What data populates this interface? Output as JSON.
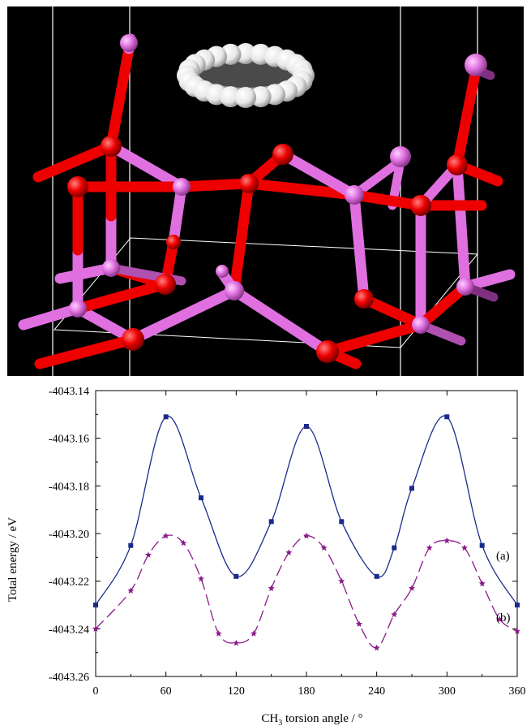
{
  "figure": {
    "top_panel": "molecular-structure-rendering",
    "atom_colors": {
      "oxygen": "#ee0000",
      "aluminium": "#e070e0",
      "carbon": "#555555",
      "hydrogen": "#f0f0f0"
    }
  },
  "chart_data": {
    "type": "line",
    "xlabel_main": "CH",
    "xlabel_sub": "3",
    "xlabel_rest": " torsion angle / °",
    "ylabel": "Total energy / eV",
    "xlim": [
      0,
      360
    ],
    "ylim": [
      -4043.26,
      -4043.14
    ],
    "x_ticks": [
      0,
      60,
      120,
      180,
      240,
      300,
      360
    ],
    "y_ticks": [
      -4043.14,
      -4043.16,
      -4043.18,
      -4043.2,
      -4043.22,
      -4043.24,
      -4043.26
    ],
    "y_tick_labels": [
      "-4043.14",
      "-4043.16",
      "-4043.18",
      "-4043.20",
      "-4043.22",
      "-4043.24",
      "-4043.26"
    ],
    "grid": false,
    "series": [
      {
        "name": "(a)",
        "color": "#1a2a8c",
        "marker": "square",
        "line_style": "solid",
        "x": [
          0,
          30,
          60,
          90,
          120,
          150,
          180,
          210,
          240,
          255,
          270,
          300,
          330,
          360
        ],
        "y": [
          -4043.23,
          -4043.205,
          -4043.151,
          -4043.185,
          -4043.218,
          -4043.195,
          -4043.155,
          -4043.195,
          -4043.218,
          -4043.206,
          -4043.181,
          -4043.151,
          -4043.205,
          -4043.23
        ]
      },
      {
        "name": "(b)",
        "color": "#8a1a8a",
        "marker": "star",
        "line_style": "dashed",
        "x": [
          0,
          30,
          45,
          60,
          75,
          90,
          105,
          120,
          135,
          150,
          165,
          180,
          195,
          210,
          225,
          240,
          255,
          270,
          285,
          300,
          315,
          330,
          345,
          360
        ],
        "y": [
          -4043.24,
          -4043.224,
          -4043.209,
          -4043.201,
          -4043.204,
          -4043.219,
          -4043.242,
          -4043.246,
          -4043.242,
          -4043.223,
          -4043.208,
          -4043.201,
          -4043.206,
          -4043.22,
          -4043.238,
          -4043.248,
          -4043.234,
          -4043.223,
          -4043.206,
          -4043.203,
          -4043.206,
          -4043.221,
          -4043.236,
          -4043.241
        ]
      }
    ]
  }
}
